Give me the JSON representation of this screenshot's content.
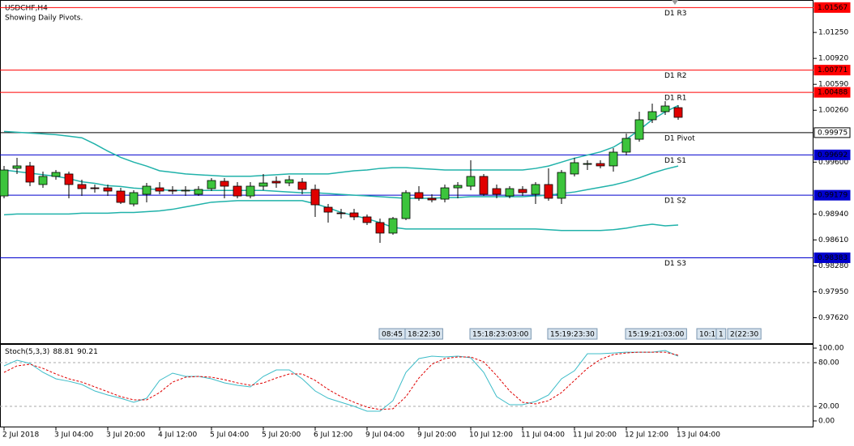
{
  "chart_data": [
    {
      "type": "candlestick",
      "title": "USDCHF,H4",
      "subtitle": "Showing Daily Pivots.",
      "categories": [
        "2 Jul 2018",
        null,
        null,
        null,
        "3 Jul 04:00",
        null,
        null,
        null,
        "3 Jul 20:00",
        null,
        null,
        null,
        "4 Jul 12:00",
        null,
        null,
        null,
        "5 Jul 04:00",
        null,
        null,
        null,
        "5 Jul 20:00",
        null,
        null,
        null,
        "6 Jul 12:00",
        null,
        null,
        null,
        "9 Jul 04:00",
        null,
        null,
        null,
        "9 Jul 20:00",
        null,
        null,
        null,
        "10 Jul 12:00",
        null,
        null,
        null,
        "11 Jul 04:00",
        null,
        null,
        null,
        "11 Jul 20:00",
        null,
        null,
        null,
        "12 Jul 12:00",
        null,
        null,
        null,
        "13 Jul 04:00"
      ],
      "open": [
        0.9917,
        0.99521,
        0.99552,
        0.99315,
        0.99418,
        0.99449,
        0.99315,
        0.99273,
        0.99273,
        0.99232,
        0.99067,
        0.99191,
        0.99273,
        0.99243,
        0.99243,
        0.99191,
        0.99263,
        0.99356,
        0.99294,
        0.9917,
        0.99294,
        0.99356,
        0.99335,
        0.99346,
        0.99253,
        0.99026,
        0.98954,
        0.98954,
        0.98903,
        0.98831,
        0.98697,
        0.98882,
        0.99212,
        0.9914,
        0.99129,
        0.99273,
        0.99294,
        0.99418,
        0.99263,
        0.9917,
        0.99253,
        0.99191,
        0.99315,
        0.9914,
        0.99449,
        0.99572,
        0.99582,
        0.99552,
        0.99727,
        0.99891,
        1.00139,
        1.00242,
        1.00293
      ],
      "high": [
        0.99552,
        0.99655,
        0.99603,
        0.99479,
        0.995,
        0.99479,
        0.99376,
        0.99315,
        0.99315,
        0.99273,
        0.99243,
        0.99335,
        0.99346,
        0.99294,
        0.99294,
        0.99294,
        0.99397,
        0.99397,
        0.99346,
        0.99346,
        0.99449,
        0.99418,
        0.99428,
        0.99397,
        0.99315,
        0.99067,
        0.99006,
        0.99006,
        0.98934,
        0.98882,
        0.98903,
        0.99243,
        0.99294,
        0.99191,
        0.99315,
        0.99346,
        0.99624,
        0.99449,
        0.99315,
        0.99294,
        0.99294,
        0.99346,
        0.99521,
        0.995,
        0.99655,
        0.99624,
        0.99624,
        0.99778,
        0.99964,
        1.00242,
        1.00345,
        1.00376,
        1.00324
      ],
      "low": [
        0.9914,
        0.99449,
        0.99294,
        0.99273,
        0.99376,
        0.9914,
        0.9917,
        0.99212,
        0.9917,
        0.99067,
        0.99037,
        0.99088,
        0.99191,
        0.99191,
        0.9917,
        0.9917,
        0.99232,
        0.9914,
        0.9914,
        0.9914,
        0.99243,
        0.99273,
        0.99294,
        0.99191,
        0.98903,
        0.98831,
        0.98882,
        0.98861,
        0.988,
        0.98573,
        0.98676,
        0.98861,
        0.99109,
        0.99088,
        0.99088,
        0.9914,
        0.99243,
        0.9917,
        0.9914,
        0.9914,
        0.9917,
        0.99067,
        0.99109,
        0.99067,
        0.99418,
        0.995,
        0.99521,
        0.99479,
        0.99685,
        0.99861,
        1.00097,
        1.002,
        1.00139
      ],
      "close": [
        0.995,
        0.99552,
        0.99346,
        0.99418,
        0.99469,
        0.99315,
        0.99263,
        0.99263,
        0.99232,
        0.99088,
        0.99212,
        0.99294,
        0.99232,
        0.99232,
        0.99243,
        0.99253,
        0.99366,
        0.99294,
        0.9917,
        0.99294,
        0.99335,
        0.99335,
        0.99376,
        0.99253,
        0.99057,
        0.98964,
        0.98944,
        0.98903,
        0.98831,
        0.98697,
        0.98882,
        0.99212,
        0.9914,
        0.99119,
        0.99273,
        0.99304,
        0.99418,
        0.99191,
        0.99191,
        0.99263,
        0.99212,
        0.99315,
        0.9914,
        0.99469,
        0.99593,
        0.99582,
        0.99552,
        0.99727,
        0.99902,
        1.00139,
        1.00242,
        1.00314,
        1.0017
      ],
      "up_color": "#3cc43c",
      "down_color": "#e00000",
      "bands": {
        "color": "#20b2aa",
        "series": [
          {
            "values": [
              0.9999,
              0.9998,
              0.9997,
              0.9996,
              0.9995,
              0.9993,
              0.9991,
              0.9983,
              0.9974,
              0.9966,
              0.996,
              0.9955,
              0.9949,
              0.9947,
              0.9945,
              0.9944,
              0.9943,
              0.9942,
              0.9942,
              0.9942,
              0.9943,
              0.9944,
              0.9945,
              0.9945,
              0.9945,
              0.9945,
              0.9947,
              0.9949,
              0.995,
              0.9952,
              0.9953,
              0.9953,
              0.9952,
              0.9951,
              0.995,
              0.995,
              0.995,
              0.995,
              0.995,
              0.995,
              0.995,
              0.9952,
              0.9955,
              0.996,
              0.9965,
              0.9969,
              0.9973,
              0.9979,
              0.9989,
              1.0001,
              1.0014,
              1.0024,
              1.0032
            ]
          },
          {
            "values": [
              0.995,
              0.9948,
              0.9946,
              0.9944,
              0.9942,
              0.9939,
              0.9935,
              0.9933,
              0.993,
              0.9929,
              0.9927,
              0.9926,
              0.9925,
              0.9924,
              0.9924,
              0.9924,
              0.9924,
              0.9924,
              0.9924,
              0.9924,
              0.9924,
              0.9923,
              0.9922,
              0.9921,
              0.9921,
              0.992,
              0.9919,
              0.9918,
              0.9917,
              0.9916,
              0.9915,
              0.9914,
              0.9914,
              0.9914,
              0.9915,
              0.9915,
              0.9916,
              0.9916,
              0.9916,
              0.9916,
              0.9916,
              0.9917,
              0.9918,
              0.992,
              0.9922,
              0.9925,
              0.9928,
              0.9931,
              0.9935,
              0.994,
              0.9946,
              0.9951,
              0.9955
            ]
          },
          {
            "values": [
              0.9893,
              0.9894,
              0.9894,
              0.9894,
              0.9894,
              0.9894,
              0.9895,
              0.9895,
              0.9895,
              0.9896,
              0.9896,
              0.9897,
              0.9898,
              0.99,
              0.9903,
              0.9906,
              0.9909,
              0.991,
              0.9911,
              0.9911,
              0.9911,
              0.9911,
              0.9911,
              0.9911,
              0.9907,
              0.9902,
              0.9896,
              0.9892,
              0.9888,
              0.9883,
              0.9877,
              0.9875,
              0.9875,
              0.9875,
              0.9875,
              0.9875,
              0.9875,
              0.9875,
              0.9875,
              0.9875,
              0.9875,
              0.9875,
              0.9874,
              0.9873,
              0.9873,
              0.9873,
              0.9873,
              0.9874,
              0.9876,
              0.9879,
              0.9881,
              0.9879,
              0.988
            ]
          }
        ]
      },
      "pivots": [
        {
          "name": "D1 R3",
          "value": 1.01567,
          "color": "#ff0000"
        },
        {
          "name": "D1 R2",
          "value": 1.00771,
          "color": "#ff0000"
        },
        {
          "name": "D1 R1",
          "value": 1.00488,
          "color": "#ff0000"
        },
        {
          "name": "D1 Pivot",
          "value": 0.99975,
          "color": "#000000"
        },
        {
          "name": "D1 S1",
          "value": 0.99692,
          "color": "#0000cd"
        },
        {
          "name": "D1 S2",
          "value": 0.99179,
          "color": "#0000cd"
        },
        {
          "name": "D1 S3",
          "value": 0.98383,
          "color": "#0000cd"
        }
      ],
      "annotations": [
        "08:45",
        "18:22:30",
        "15:18:23:03:00",
        "15:19:23:30",
        "15:19:21:03:00",
        "10:1",
        "1",
        "2(22:30"
      ],
      "ylim": [
        0.97296,
        1.01663
      ],
      "yticks": [
        {
          "value": 1.0125,
          "label": "1.01250"
        },
        {
          "value": 1.0092,
          "label": "1.00920"
        },
        {
          "value": 1.0059,
          "label": "1.00590"
        },
        {
          "value": 1.0026,
          "label": "1.00260"
        },
        {
          "value": 0.996,
          "label": "0.99600"
        },
        {
          "value": 0.9894,
          "label": "0.98940"
        },
        {
          "value": 0.9861,
          "label": "0.98610"
        },
        {
          "value": 0.9828,
          "label": "0.98280"
        },
        {
          "value": 0.9795,
          "label": "0.97950"
        },
        {
          "value": 0.9762,
          "label": "0.97620"
        }
      ]
    },
    {
      "type": "line",
      "title": "Stoch(5,3,3)",
      "series": [
        {
          "color": "#3cbcc8",
          "dash": false,
          "values": [
            75.6,
            83.3,
            78.9,
            66.7,
            57.8,
            54.4,
            50.0,
            41.1,
            35.6,
            31.1,
            25.6,
            31.1,
            55.6,
            65.6,
            61.1,
            61.1,
            57.8,
            52.2,
            48.9,
            46.7,
            61.1,
            70.0,
            70.0,
            57.8,
            41.1,
            31.1,
            25.6,
            20.0,
            13.3,
            13.3,
            27.8,
            66.7,
            85.6,
            88.9,
            87.8,
            88.9,
            86.7,
            66.7,
            33.3,
            22.2,
            22.2,
            26.7,
            35.6,
            57.8,
            68.9,
            92.2,
            92.2,
            93.3,
            94.4,
            94.4,
            94.4,
            96.7,
            88.81
          ]
        },
        {
          "color": "#e00000",
          "dash": true,
          "values": [
            66.7,
            75.6,
            77.8,
            72.2,
            64.4,
            57.8,
            53.3,
            46.7,
            40.0,
            33.3,
            28.9,
            28.9,
            38.9,
            53.3,
            60.0,
            61.1,
            60.0,
            56.7,
            52.2,
            48.9,
            52.2,
            58.9,
            64.4,
            64.4,
            55.6,
            43.3,
            33.3,
            25.6,
            18.9,
            15.6,
            16.7,
            33.3,
            58.9,
            77.8,
            85.6,
            87.8,
            87.8,
            81.1,
            62.2,
            41.1,
            25.6,
            23.3,
            27.8,
            38.9,
            55.6,
            72.2,
            84.4,
            91.1,
            93.3,
            94.4,
            94.4,
            94.4,
            90.21
          ]
        }
      ],
      "ylim": [
        -8.9,
        105.6
      ],
      "yticks": [
        {
          "value": 100,
          "label": "100.00",
          "level": false
        },
        {
          "value": 80,
          "label": "80.00",
          "level": true
        },
        {
          "value": 20,
          "label": "20.00",
          "level": true
        },
        {
          "value": 0,
          "label": "0.00",
          "level": false
        }
      ]
    }
  ]
}
